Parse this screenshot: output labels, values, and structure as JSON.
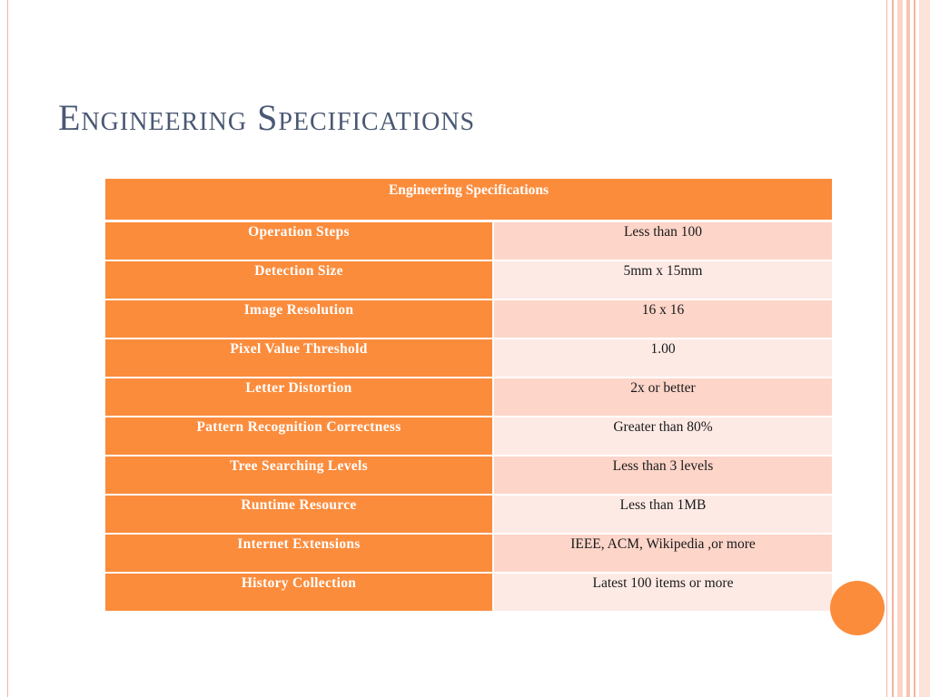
{
  "slide": {
    "title": "Engineering Specifications",
    "table": {
      "header": "Engineering Specifications",
      "rows": [
        {
          "label": "Operation Steps",
          "value": "Less than 100"
        },
        {
          "label": "Detection Size",
          "value": "5mm x 15mm"
        },
        {
          "label": "Image Resolution",
          "value": "16 x 16"
        },
        {
          "label": "Pixel Value Threshold",
          "value": "1.00"
        },
        {
          "label": "Letter Distortion",
          "value": "2x or better"
        },
        {
          "label": "Pattern Recognition Correctness",
          "value": "Greater than 80%"
        },
        {
          "label": "Tree Searching Levels",
          "value": "Less than 3 levels"
        },
        {
          "label": "Runtime Resource",
          "value": "Less than 1MB"
        },
        {
          "label": "Internet Extensions",
          "value": "IEEE, ACM, Wikipedia ,or more"
        },
        {
          "label": "History Collection",
          "value": "Latest 100 items or more"
        }
      ]
    }
  },
  "colors": {
    "accent": "#fb8c3c",
    "row_light": "#feeae5",
    "row_medium": "#fdd5c9",
    "title": "#4a5873"
  }
}
